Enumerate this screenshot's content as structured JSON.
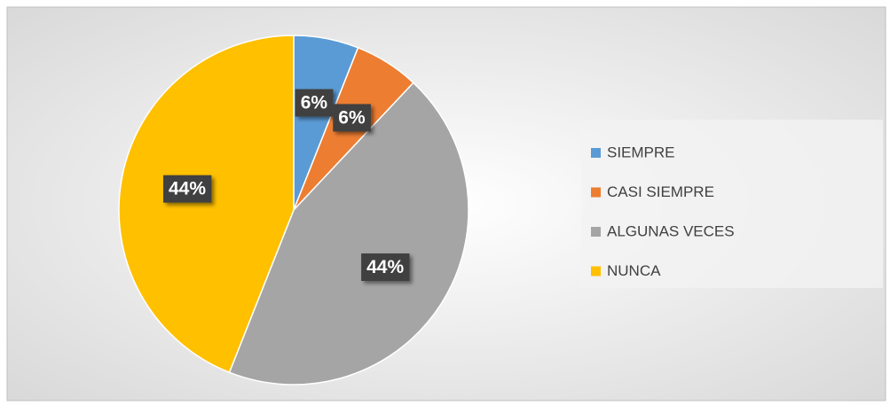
{
  "chart_data": {
    "type": "pie",
    "categories": [
      "SIEMPRE",
      "CASI SIEMPRE",
      "ALGUNAS VECES",
      "NUNCA"
    ],
    "values": [
      6,
      6,
      44,
      44
    ],
    "value_labels": [
      "6%",
      "6%",
      "44%",
      "44%"
    ],
    "colors": [
      "#5b9bd5",
      "#ed7d31",
      "#a5a5a5",
      "#ffc000"
    ],
    "legend": "right"
  }
}
